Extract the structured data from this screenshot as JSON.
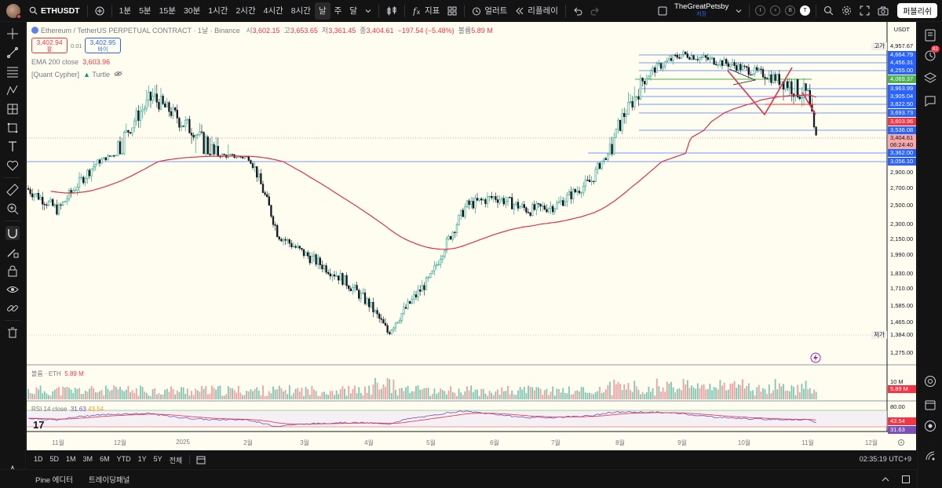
{
  "topbar": {
    "symbol": "ETHUSDT",
    "intervals": [
      "1분",
      "5분",
      "15분",
      "30분",
      "1시간",
      "2시간",
      "4시간",
      "8시간",
      "날",
      "주",
      "달"
    ],
    "active_interval": "날",
    "indicators_label": "지표",
    "alert_label": "얼러트",
    "replay_label": "리플레이",
    "account_name": "TheGreatPetsby",
    "account_sub": "저장",
    "circles": [
      "t",
      "♀",
      "B",
      "T"
    ],
    "publish_label": "퍼블리쉬"
  },
  "legend": {
    "title": "Ethereum / TetherUS PERPETUAL CONTRACT · 1날 · Binance",
    "open_label": "시",
    "open": "3,602.15",
    "high_label": "고",
    "high": "3,653.65",
    "low_label": "저",
    "low": "3,361.45",
    "close_label": "종",
    "close": "3,404.61",
    "change": "−197.54 (−5.48%)",
    "volume_label": "볼륨",
    "volume": "5.89 M",
    "sell_price": "3,402.94",
    "sell_label": "팔",
    "spread": "0.01",
    "buy_price": "3,402.95",
    "buy_label": "바이",
    "ema_label": "EMA 200 close",
    "ema_value": "3,603.96",
    "quant_label": "[Quant Cypher]",
    "quant_turtle": "Turtle"
  },
  "price_axis": {
    "currency": "USDT",
    "high_tag": "고가",
    "high_value": "4,957.67",
    "low_tag": "저가",
    "low_value": "1,384.00",
    "levels": [
      {
        "value": "4,664.79",
        "color": "#2962ff",
        "price": 4664.79
      },
      {
        "value": "4,456.31",
        "color": "#2962ff",
        "price": 4456.31
      },
      {
        "value": "4,255.00",
        "color": "#2962ff",
        "price": 4255.0
      },
      {
        "value": "4,069.37",
        "color": "#4caf50",
        "price": 4069.37
      },
      {
        "value": "3,963.99",
        "color": "#2962ff",
        "price": 3963.99
      },
      {
        "value": "3,905.04",
        "color": "#2962ff",
        "price": 3905.04
      },
      {
        "value": "3,822.50",
        "color": "#2962ff",
        "price": 3822.5
      },
      {
        "value": "3,693.73",
        "color": "#2962ff",
        "price": 3693.73
      },
      {
        "value": "3,603.96",
        "color": "#f23645",
        "price": 3603.96
      },
      {
        "value": "3,536.08",
        "color": "#2962ff",
        "price": 3536.08
      },
      {
        "value": "3,404.61",
        "color": "#f7a8a8",
        "price": 3404.61
      },
      {
        "value": "06:24:40",
        "color": "#f7a8a8",
        "price": 3375
      },
      {
        "value": "3,362.00",
        "color": "#2962ff",
        "price": 3362.0
      },
      {
        "value": "3,056.10",
        "color": "#2962ff",
        "price": 3056.1
      }
    ],
    "ticks": [
      "2,900.00",
      "2,700.00",
      "2,500.00",
      "2,300.00",
      "2,150.00",
      "1,990.00",
      "1,830.00",
      "1,710.00",
      "1,585.00",
      "1,465.00",
      "1,275.00"
    ],
    "tick_values": [
      2900,
      2700,
      2500,
      2300,
      2150,
      1990,
      1830,
      1710,
      1585,
      1465,
      1275
    ]
  },
  "volume_pane": {
    "label": "볼륨 · ETH",
    "value": "5.89 M",
    "axis": "10 M",
    "tag": "5.89 M"
  },
  "rsi_pane": {
    "label": "RSI 14 close",
    "value1": "31.63",
    "value2": "43.54",
    "axis": "80.00",
    "tag1": "43.54",
    "tag2": "31.63"
  },
  "time_axis": [
    "11월",
    "12월",
    "2025",
    "2월",
    "3월",
    "4월",
    "5월",
    "6월",
    "7월",
    "8월",
    "9월",
    "10월",
    "11월",
    "12월"
  ],
  "chart_data": {
    "type": "candlestick",
    "symbol": "ETHUSDT",
    "timeframe": "1D",
    "monthly_closes": {
      "months": [
        "11월",
        "12월",
        "2025",
        "2월",
        "3월",
        "4월",
        "5월",
        "6월",
        "7월",
        "8월",
        "9월",
        "10월",
        "11월"
      ],
      "values": [
        2700,
        3400,
        3300,
        2200,
        1800,
        1600,
        2500,
        2450,
        2800,
        4300,
        4400,
        3900,
        3404.61
      ]
    },
    "ylim": [
      1275,
      4957.67
    ],
    "indicators": [
      "EMA 200 close",
      "Volume",
      "RSI 14"
    ]
  },
  "bottombar": {
    "ranges": [
      "1D",
      "5D",
      "1M",
      "3M",
      "6M",
      "YTD",
      "1Y",
      "5Y",
      "전체"
    ],
    "clock": "02:35:19 UTC+9"
  },
  "footer": {
    "tabs": [
      "Pine 에디터",
      "트레이딩패널"
    ]
  },
  "right_badge": "82"
}
